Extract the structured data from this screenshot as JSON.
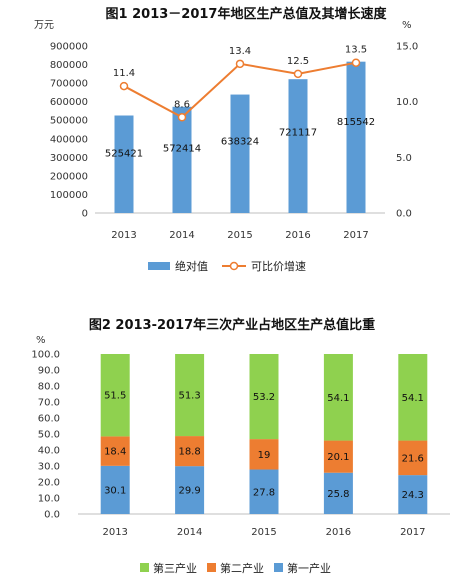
{
  "colors": {
    "bar_blue": "#5b9bd5",
    "line_orange": "#ed7d31",
    "green": "#8fd14f",
    "orange": "#ed7d31",
    "blue": "#5b9bd5"
  },
  "chart_data": [
    {
      "type": "bar",
      "title": "图1  2013－2017年地区生产总值及其增长速度",
      "ylabel_left": "万元",
      "ylabel_right": "%",
      "categories": [
        "2013",
        "2014",
        "2015",
        "2016",
        "2017"
      ],
      "y_left_ticks": [
        "0",
        "100000",
        "200000",
        "300000",
        "400000",
        "500000",
        "600000",
        "700000",
        "800000",
        "900000"
      ],
      "y_right_ticks": [
        "0.0",
        "5.0",
        "10.0",
        "15.0"
      ],
      "ylim_left": [
        0,
        900000
      ],
      "ylim_right": [
        0,
        15
      ],
      "series": [
        {
          "name": "绝对值",
          "kind": "bar",
          "axis": "left",
          "values": [
            525421,
            572414,
            638324,
            721117,
            815542
          ],
          "labels": [
            "525421",
            "572414",
            "638324",
            "721117",
            "815542"
          ]
        },
        {
          "name": "可比价增速",
          "kind": "line",
          "axis": "right",
          "values": [
            11.4,
            8.6,
            13.4,
            12.5,
            13.5
          ],
          "labels": [
            "11.4",
            "8.6",
            "13.4",
            "12.5",
            "13.5"
          ]
        }
      ],
      "legend": "bottom",
      "grid": false
    },
    {
      "type": "bar",
      "stacked": true,
      "title": "图2 2013-2017年三次产业占地区生产总值比重",
      "ylabel": "%",
      "categories": [
        "2013",
        "2014",
        "2015",
        "2016",
        "2017"
      ],
      "y_ticks": [
        "0.0",
        "10.0",
        "20.0",
        "30.0",
        "40.0",
        "50.0",
        "60.0",
        "70.0",
        "80.0",
        "90.0",
        "100.0"
      ],
      "ylim": [
        0,
        100
      ],
      "series": [
        {
          "name": "第一产业",
          "values": [
            30.1,
            29.9,
            27.8,
            25.8,
            24.3
          ],
          "labels": [
            "30.1",
            "29.9",
            "27.8",
            "25.8",
            "24.3"
          ]
        },
        {
          "name": "第二产业",
          "values": [
            18.4,
            18.8,
            19,
            20.1,
            21.6
          ],
          "labels": [
            "18.4",
            "18.8",
            "19",
            "20.1",
            "21.6"
          ]
        },
        {
          "name": "第三产业",
          "values": [
            51.5,
            51.3,
            53.2,
            54.1,
            54.1
          ],
          "labels": [
            "51.5",
            "51.3",
            "53.2",
            "54.1",
            "54.1"
          ]
        }
      ],
      "legend_order": [
        "第三产业",
        "第二产业",
        "第一产业"
      ],
      "legend": "bottom",
      "grid": false
    }
  ]
}
